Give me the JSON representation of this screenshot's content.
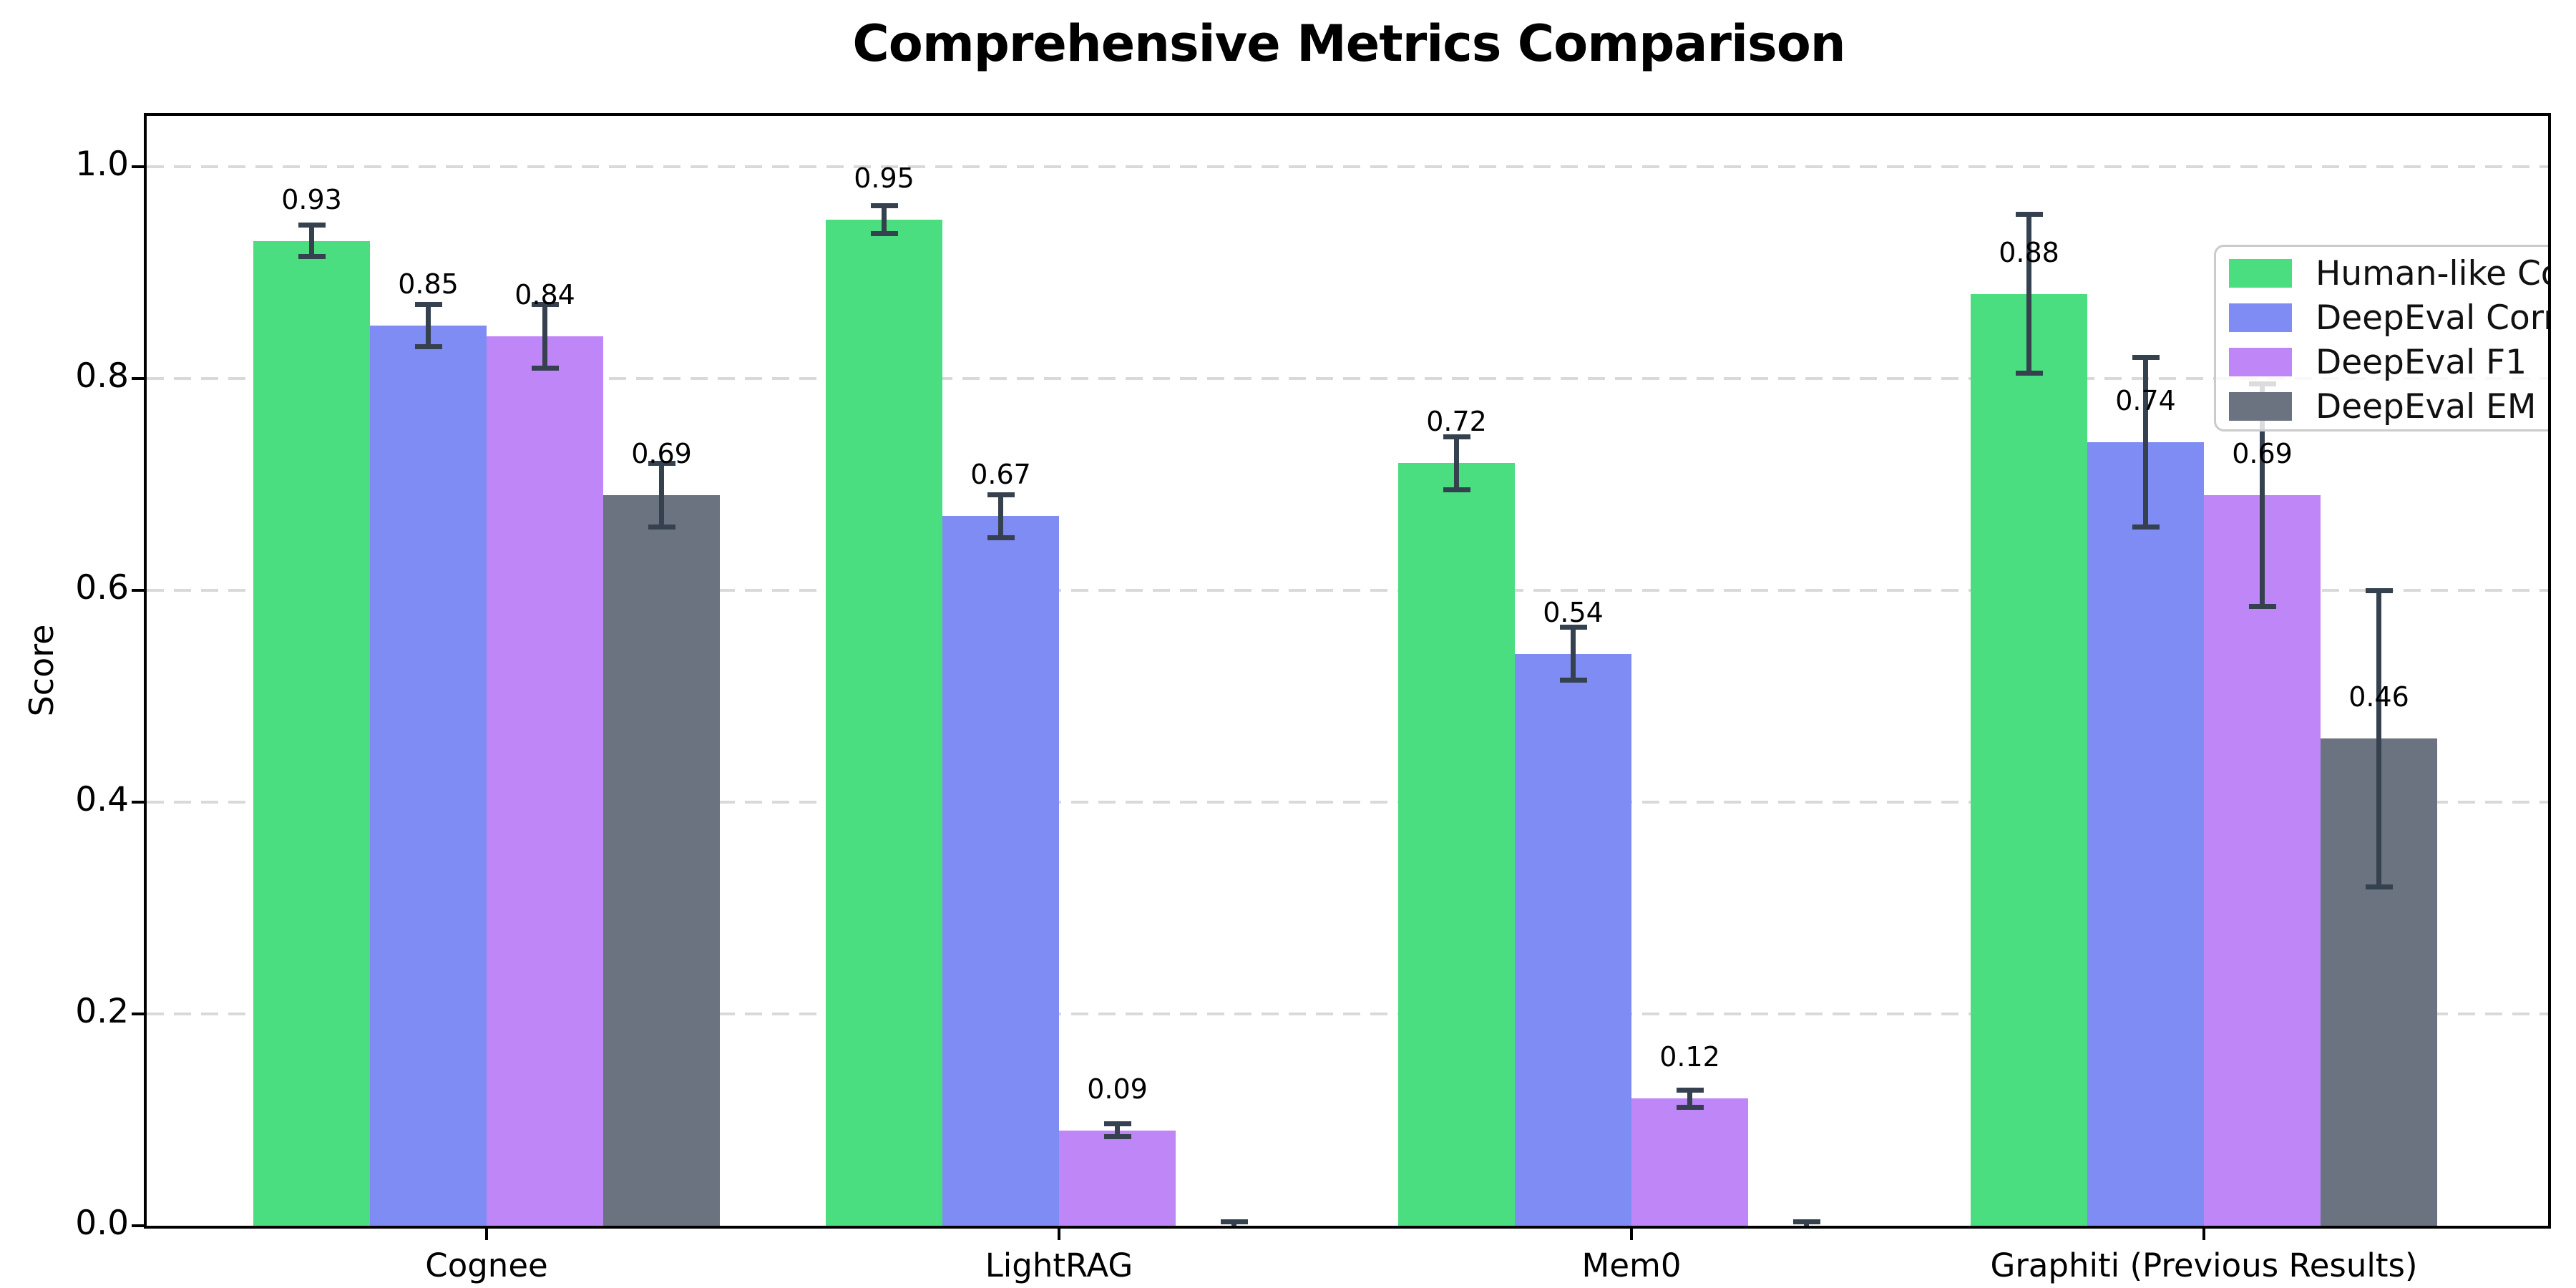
{
  "chart_data": {
    "type": "bar",
    "title": "Comprehensive Metrics Comparison",
    "xlabel": "",
    "ylabel": "Score",
    "categories": [
      "Cognee",
      "LightRAG",
      "Mem0",
      "Graphiti (Previous Results)"
    ],
    "series": [
      {
        "name": "Human-like Correctness",
        "color": "#4ade80",
        "values": [
          0.93,
          0.95,
          0.72,
          0.88
        ],
        "errors": [
          0.015,
          0.013,
          0.025,
          0.075
        ],
        "labels": [
          "0.93",
          "0.95",
          "0.72",
          "0.88"
        ]
      },
      {
        "name": "DeepEval Correctness",
        "color": "#7e8cf3",
        "values": [
          0.85,
          0.67,
          0.54,
          0.74
        ],
        "errors": [
          0.02,
          0.02,
          0.025,
          0.08
        ],
        "labels": [
          "0.85",
          "0.67",
          "0.54",
          "0.74"
        ]
      },
      {
        "name": "DeepEval F1",
        "color": "#bf86f7",
        "values": [
          0.84,
          0.09,
          0.12,
          0.69
        ],
        "errors": [
          0.03,
          0.006,
          0.008,
          0.105
        ],
        "labels": [
          "0.84",
          "0.09",
          "0.12",
          "0.69"
        ]
      },
      {
        "name": "DeepEval EM",
        "color": "#6b7280",
        "values": [
          0.69,
          0.0,
          0.0,
          0.46
        ],
        "errors": [
          0.03,
          0.004,
          0.004,
          0.14
        ],
        "labels": [
          "0.69",
          "",
          "",
          "0.46"
        ]
      }
    ],
    "yticks": {
      "values": [
        0.0,
        0.2,
        0.4,
        0.6,
        0.8,
        1.0
      ],
      "labels": [
        "0.0",
        "0.2",
        "0.4",
        "0.6",
        "0.8",
        "1.0"
      ]
    },
    "ylim": [
      0.0,
      1.05
    ],
    "grid": "horizontal-dashed",
    "legend_position": "upper right",
    "error_bar_color": "#36414f"
  }
}
